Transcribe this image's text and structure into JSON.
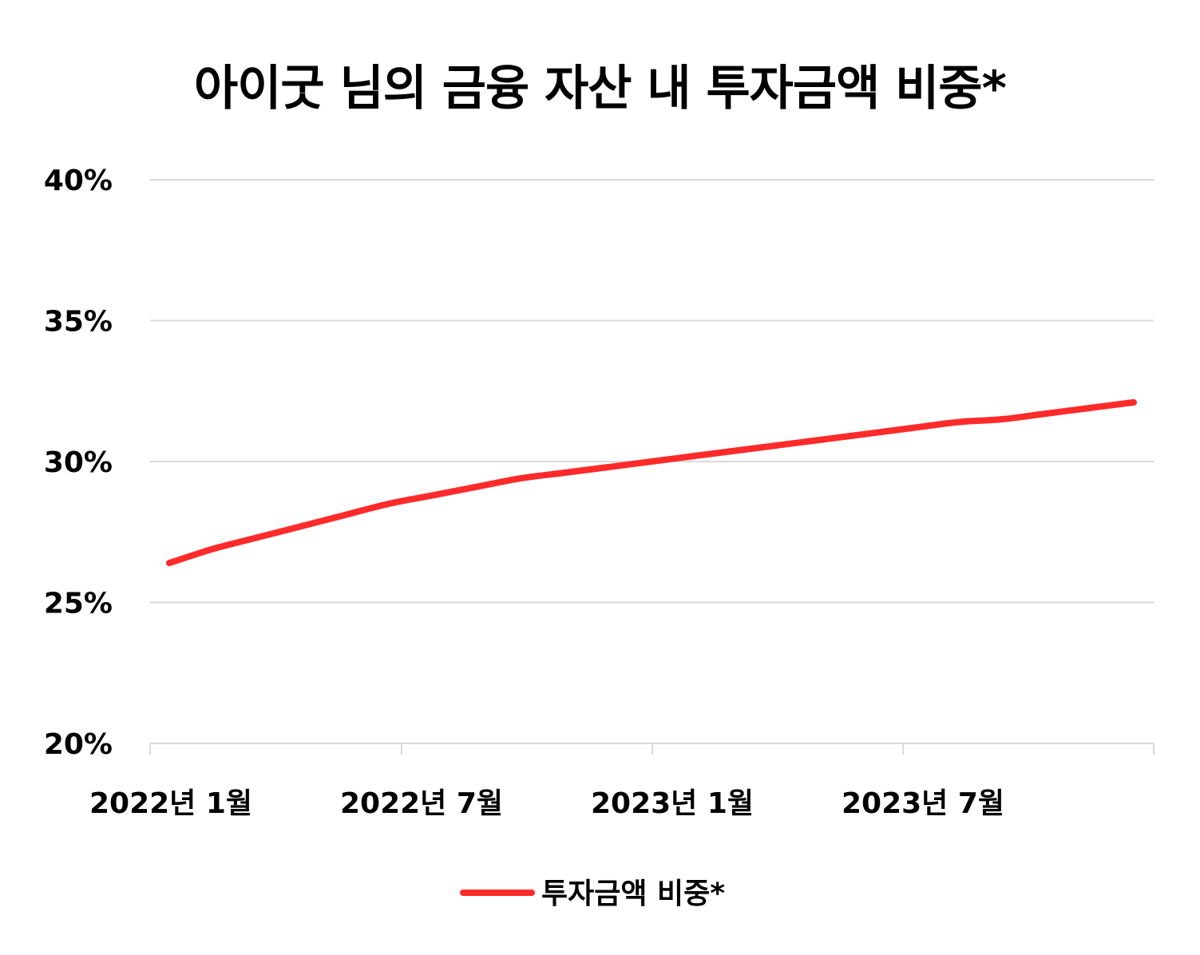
{
  "chart_data": {
    "type": "line",
    "title": "아이굿 님의 금융 자산 내 투자금액 비중*",
    "xlabel": "",
    "ylabel": "",
    "x": [
      "2022년 1월",
      "2022년 2월",
      "2022년 3월",
      "2022년 4월",
      "2022년 5월",
      "2022년 6월",
      "2022년 7월",
      "2022년 8월",
      "2022년 9월",
      "2022년 10월",
      "2022년 11월",
      "2022년 12월",
      "2023년 1월",
      "2023년 2월",
      "2023년 3월",
      "2023년 4월",
      "2023년 5월",
      "2023년 6월",
      "2023년 7월",
      "2023년 8월",
      "2023년 9월",
      "2023년 10월",
      "2023년 11월"
    ],
    "x_ticks": [
      "2022년 1월",
      "2022년 7월",
      "2023년 1월",
      "2023년 7월"
    ],
    "y_ticks": [
      "20%",
      "25%",
      "30%",
      "35%",
      "40%"
    ],
    "ylim": [
      20,
      40
    ],
    "series": [
      {
        "name": "투자금액 비중*",
        "color": "#ff2a2a",
        "values": [
          26.4,
          26.9,
          27.3,
          27.7,
          28.1,
          28.5,
          28.8,
          29.1,
          29.4,
          29.6,
          29.8,
          30.0,
          30.2,
          30.4,
          30.6,
          30.8,
          31.0,
          31.2,
          31.4,
          31.5,
          31.7,
          31.9,
          32.1
        ]
      }
    ],
    "grid": true,
    "legend_position": "bottom-center"
  }
}
